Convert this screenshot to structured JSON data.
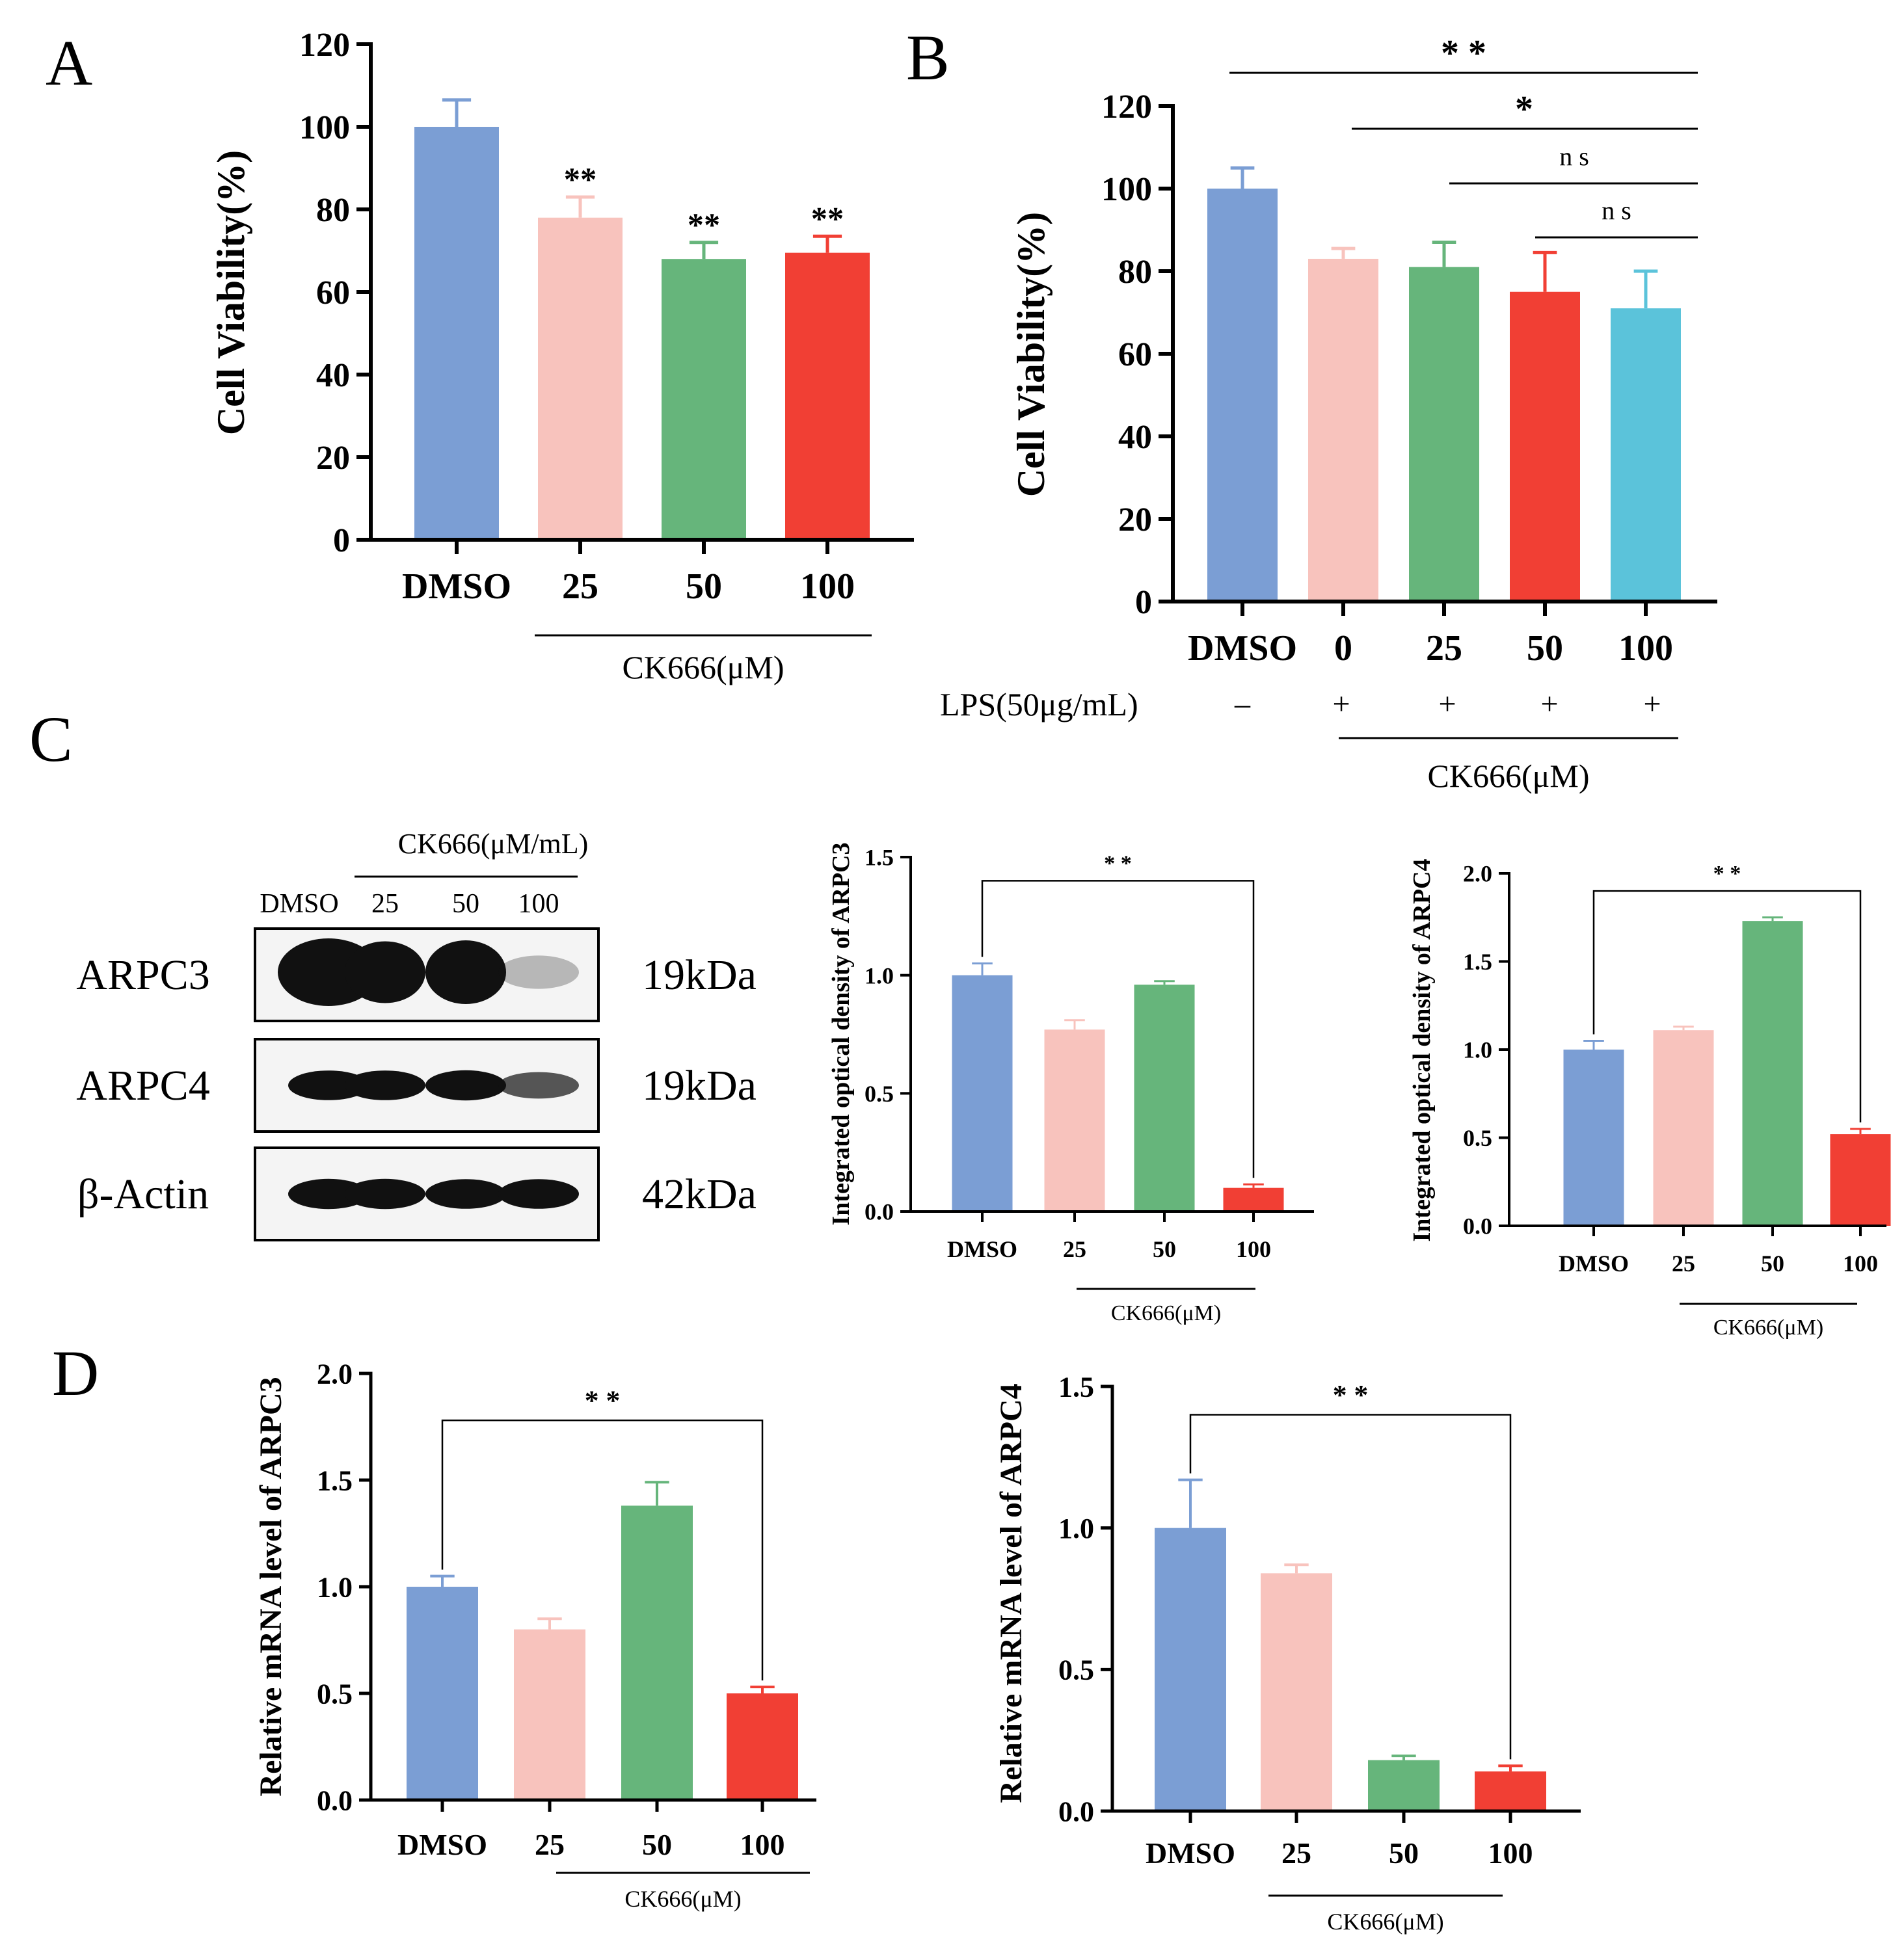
{
  "colors": {
    "blue": "#7B9ED4",
    "pink": "#F8C3BD",
    "green": "#66B57B",
    "red": "#F13F34",
    "cyan": "#5BC3DA",
    "axis": "#000000",
    "blot_dark": "#111111"
  },
  "chart_data": [
    {
      "id": "A",
      "panel_letter": "A",
      "type": "bar",
      "ylabel": "Cell Viability(%)",
      "ylim": [
        0,
        120
      ],
      "yticks": [
        "0",
        "20",
        "40",
        "60",
        "80",
        "100",
        "120"
      ],
      "ytick_values": [
        0,
        20,
        40,
        60,
        80,
        100,
        120
      ],
      "categories": [
        "DMSO",
        "25",
        "50",
        "100"
      ],
      "values": [
        100,
        78,
        68,
        69.5
      ],
      "errors": [
        6.5,
        5,
        4,
        4
      ],
      "bar_colors": [
        "blue",
        "pink",
        "green",
        "red"
      ],
      "significance": [
        "",
        "**",
        "**",
        "**"
      ],
      "group_label": "CK666(μM)"
    },
    {
      "id": "B",
      "panel_letter": "B",
      "type": "bar",
      "ylabel": "Cell Viability(%)",
      "ylim": [
        0,
        120
      ],
      "yticks": [
        "0",
        "20",
        "40",
        "60",
        "80",
        "100",
        "120"
      ],
      "ytick_values": [
        0,
        20,
        40,
        60,
        80,
        100,
        120
      ],
      "categories": [
        "DMSO",
        "0",
        "25",
        "50",
        "100"
      ],
      "values": [
        100,
        83,
        81,
        75,
        71
      ],
      "errors": [
        5,
        2.5,
        6,
        9.5,
        9
      ],
      "bar_colors": [
        "blue",
        "pink",
        "green",
        "red",
        "cyan"
      ],
      "lps_label": "LPS(50μg/mL)",
      "lps_signs": [
        "–",
        "+",
        "+",
        "+",
        "+"
      ],
      "group_label": "CK666(μM)",
      "comparisons": [
        {
          "label": "**",
          "from": 0,
          "to": 4
        },
        {
          "label": "*",
          "from": 1,
          "to": 4
        },
        {
          "label": "ns",
          "from": 2,
          "to": 4
        },
        {
          "label": "ns",
          "from": 3,
          "to": 4
        }
      ]
    },
    {
      "id": "C3",
      "type": "bar",
      "ylabel": "Integrated optical density of ARPC3",
      "ylim": [
        0,
        1.5
      ],
      "yticks": [
        "0.0",
        "0.5",
        "1.0",
        "1.5"
      ],
      "ytick_values": [
        0,
        0.5,
        1.0,
        1.5
      ],
      "categories": [
        "DMSO",
        "25",
        "50",
        "100"
      ],
      "values": [
        1.0,
        0.77,
        0.96,
        0.1
      ],
      "errors": [
        0.05,
        0.04,
        0.015,
        0.015
      ],
      "bar_colors": [
        "blue",
        "pink",
        "green",
        "red"
      ],
      "group_label": "CK666(μM)",
      "bracket": {
        "label": "* *",
        "from": 0,
        "to": 3
      }
    },
    {
      "id": "C4",
      "type": "bar",
      "ylabel": "Integrated optical density of ARPC4",
      "ylim": [
        0,
        2.0
      ],
      "yticks": [
        "0.0",
        "0.5",
        "1.0",
        "1.5",
        "2.0"
      ],
      "ytick_values": [
        0,
        0.5,
        1.0,
        1.5,
        2.0
      ],
      "categories": [
        "DMSO",
        "25",
        "50",
        "100"
      ],
      "values": [
        1.0,
        1.11,
        1.73,
        0.52
      ],
      "errors": [
        0.05,
        0.02,
        0.02,
        0.03
      ],
      "bar_colors": [
        "blue",
        "pink",
        "green",
        "red"
      ],
      "group_label": "CK666(μM)",
      "bracket": {
        "label": "* *",
        "from": 0,
        "to": 3
      }
    },
    {
      "id": "D3",
      "panel_letter": "D",
      "type": "bar",
      "ylabel": "Relative mRNA level of ARPC3",
      "ylim": [
        0,
        2.0
      ],
      "yticks": [
        "0.0",
        "0.5",
        "1.0",
        "1.5",
        "2.0"
      ],
      "ytick_values": [
        0,
        0.5,
        1.0,
        1.5,
        2.0
      ],
      "categories": [
        "DMSO",
        "25",
        "50",
        "100"
      ],
      "values": [
        1.0,
        0.8,
        1.38,
        0.5
      ],
      "errors": [
        0.05,
        0.05,
        0.11,
        0.03
      ],
      "bar_colors": [
        "blue",
        "pink",
        "green",
        "red"
      ],
      "group_label": "CK666(μM)",
      "bracket": {
        "label": "* *",
        "from": 0,
        "to": 3
      }
    },
    {
      "id": "D4",
      "type": "bar",
      "ylabel": "Relative mRNA level of ARPC4",
      "ylim": [
        0,
        1.5
      ],
      "yticks": [
        "0.0",
        "0.5",
        "1.0",
        "1.5"
      ],
      "ytick_values": [
        0,
        0.5,
        1.0,
        1.5
      ],
      "categories": [
        "DMSO",
        "25",
        "50",
        "100"
      ],
      "values": [
        1.0,
        0.84,
        0.18,
        0.14
      ],
      "errors": [
        0.17,
        0.03,
        0.015,
        0.02
      ],
      "bar_colors": [
        "blue",
        "pink",
        "green",
        "red"
      ],
      "group_label": "CK666(μM)",
      "bracket": {
        "label": "* *",
        "from": 0,
        "to": 3
      }
    }
  ],
  "western_blot": {
    "panel_letter": "C",
    "treatment_label": "CK666(μM/mL)",
    "lane_labels": [
      "DMSO",
      "25",
      "50",
      "100"
    ],
    "rows": [
      {
        "protein": "ARPC3",
        "size": "19kDa",
        "intensities": [
          1.0,
          0.85,
          0.9,
          0.12
        ]
      },
      {
        "protein": "ARPC4",
        "size": "19kDa",
        "intensities": [
          0.85,
          0.85,
          0.9,
          0.55
        ]
      },
      {
        "protein": "β-Actin",
        "size": "42kDa",
        "intensities": [
          0.9,
          0.9,
          0.85,
          0.85
        ]
      }
    ]
  }
}
